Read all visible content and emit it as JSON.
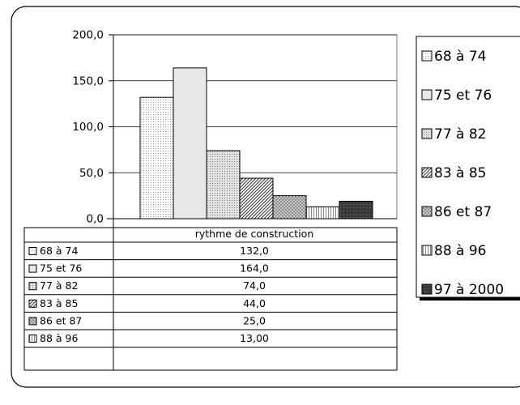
{
  "chart_data": {
    "type": "bar",
    "xlabel": "rythme de construction",
    "ylim": [
      0,
      200
    ],
    "yticks": [
      "200,0",
      "150,0",
      "100,0",
      "50,0",
      "0,0"
    ],
    "grid": true,
    "legend_position": "right",
    "series": [
      {
        "name": "68 à 74",
        "value": 132.0,
        "table_value": "132,0",
        "fill": "#f6f6f6",
        "pattern": "fine-dots"
      },
      {
        "name": "75 et 76",
        "value": 164.0,
        "table_value": "164,0",
        "fill": "#ececec",
        "pattern": "solid"
      },
      {
        "name": "77 à 82",
        "value": 74.0,
        "table_value": "74,0",
        "fill": "#d6d6d6",
        "pattern": "dots"
      },
      {
        "name": "83 à 85",
        "value": 44.0,
        "table_value": "44,0",
        "fill": "#b8b8b8",
        "pattern": "diagonal"
      },
      {
        "name": "86 et 87",
        "value": 25.0,
        "table_value": "25,0",
        "fill": "#a0a0a0",
        "pattern": "checker"
      },
      {
        "name": "88 à 96",
        "value": 13.0,
        "table_value": "13,00",
        "fill": "#d0d0d0",
        "pattern": "vertical"
      },
      {
        "name": "97 à 2000",
        "value": 19.0,
        "table_value": "",
        "fill": "#404040",
        "pattern": "dark"
      }
    ]
  },
  "colors": {
    "border": "#000000",
    "gridline": "#000000",
    "background": "#ffffff"
  }
}
